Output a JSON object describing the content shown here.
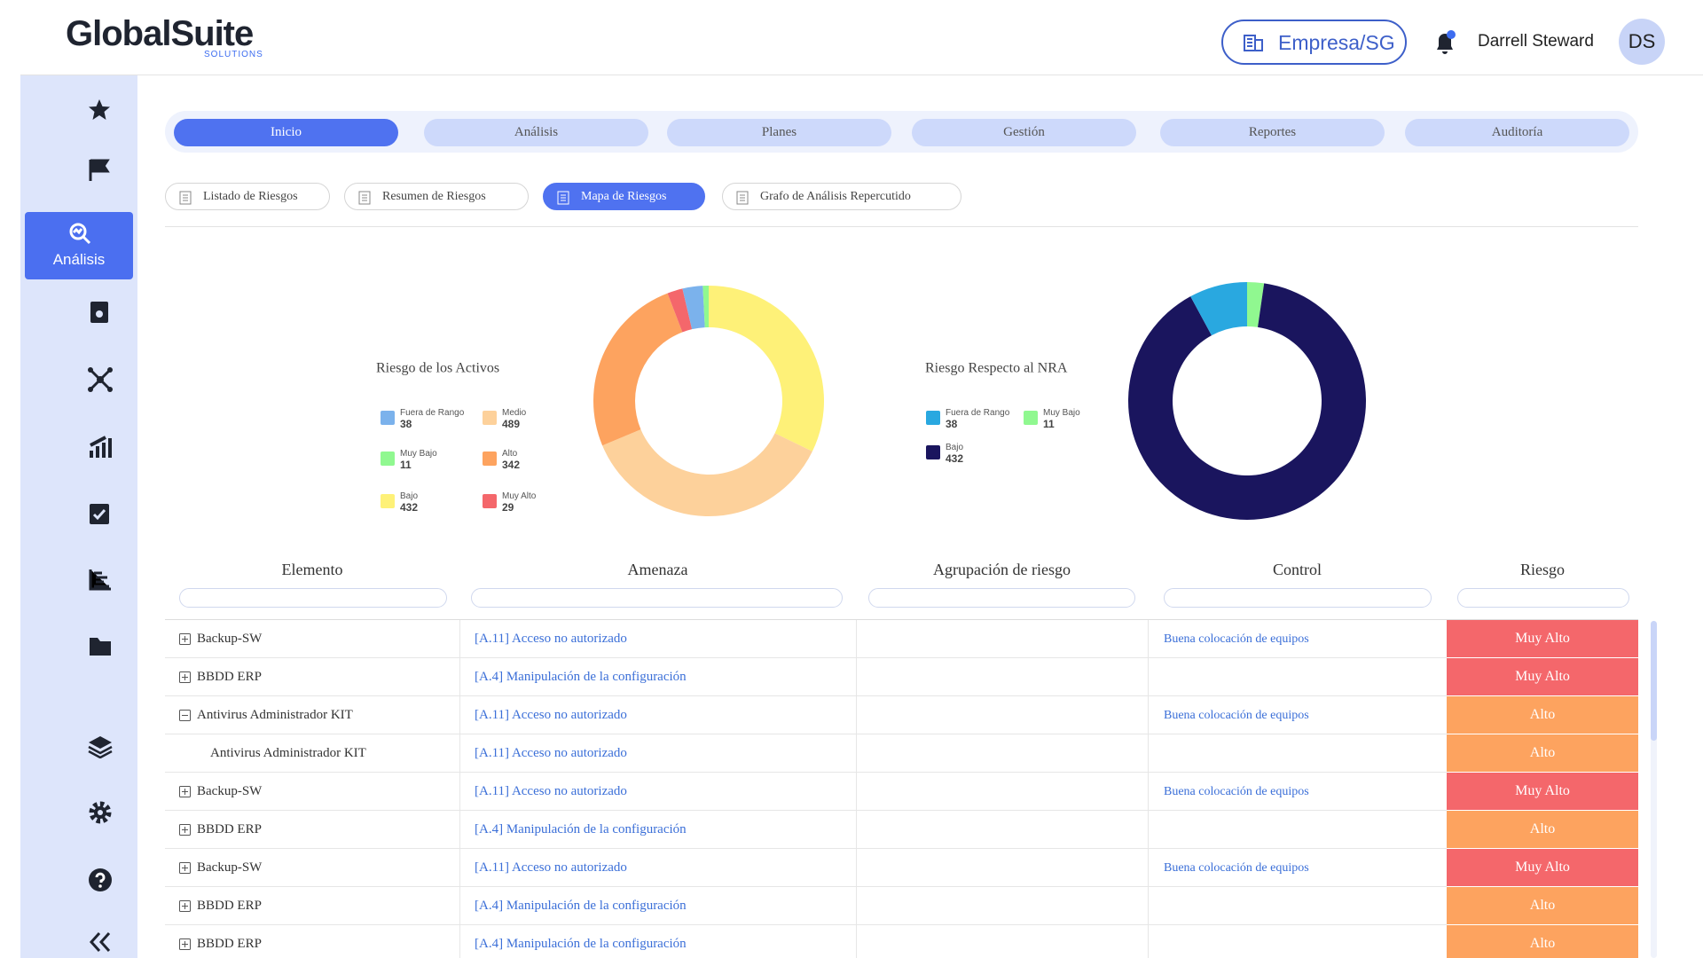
{
  "header": {
    "logo": "GlobalSuite",
    "logo_sub": "SOLUTIONS",
    "company": "Empresa/SG",
    "user": "Darrell Steward",
    "initials": "DS"
  },
  "sidebar": {
    "active": "Análisis"
  },
  "nav": [
    "Inicio",
    "Análisis",
    "Planes",
    "Gestión",
    "Reportes",
    "Auditoría"
  ],
  "subtabs": [
    "Listado de Riesgos",
    "Resumen de Riesgos",
    "Mapa de Riesgos",
    "Grafo de Análisis Repercutido"
  ],
  "chart_data": [
    {
      "type": "pie",
      "title": "Riesgo de los Activos",
      "categories": [
        "Bajo",
        "Medio",
        "Alto",
        "Muy Alto",
        "Fuera de Rango",
        "Muy Bajo"
      ],
      "values": [
        432,
        489,
        342,
        29,
        38,
        11
      ],
      "colors": [
        "#fef178",
        "#fdd19b",
        "#fda35f",
        "#f4676b",
        "#7bb2ec",
        "#90f890"
      ]
    },
    {
      "type": "pie",
      "title": "Riesgo Respecto al NRA",
      "categories": [
        "Muy Bajo",
        "Bajo",
        "Fuera de Rango"
      ],
      "values": [
        11,
        432,
        38
      ],
      "colors": [
        "#90f890",
        "#1a155e",
        "#29a8e0"
      ]
    }
  ],
  "table": {
    "columns": [
      "Elemento",
      "Amenaza",
      "Agrupación de riesgo",
      "Control",
      "Riesgo"
    ],
    "rows": [
      {
        "elemento": "Backup-SW",
        "amenaza": "[A.11] Acceso no autorizado",
        "control": "Buena colocación de equipos",
        "riesgo": "Muy Alto",
        "color": "#f4676b",
        "expanded": false
      },
      {
        "elemento": "BBDD ERP",
        "amenaza": "[A.4] Manipulación de la configuración",
        "riesgo": "Muy Alto",
        "color": "#f4676b",
        "expanded": false
      },
      {
        "elemento": "Antivirus Administrador KIT",
        "amenaza": "[A.11] Acceso no autorizado",
        "control": "Buena colocación de equipos",
        "riesgo": "Alto",
        "color": "#fda35f",
        "expanded": true
      },
      {
        "elemento": "Antivirus Administrador KIT",
        "amenaza": "[A.11] Acceso no autorizado",
        "riesgo": "Alto",
        "color": "#fda35f",
        "child": true
      },
      {
        "elemento": "Backup-SW",
        "amenaza": "[A.11] Acceso no autorizado",
        "control": "Buena colocación de equipos",
        "riesgo": "Muy Alto",
        "color": "#f4676b",
        "expanded": false
      },
      {
        "elemento": "BBDD ERP",
        "amenaza": "[A.4] Manipulación de la configuración",
        "riesgo": "Alto",
        "color": "#fda35f",
        "expanded": false
      },
      {
        "elemento": "Backup-SW",
        "amenaza": "[A.11] Acceso no autorizado",
        "control": "Buena colocación de equipos",
        "riesgo": "Muy Alto",
        "color": "#f4676b",
        "expanded": false
      },
      {
        "elemento": "BBDD ERP",
        "amenaza": "[A.4] Manipulación de la configuración",
        "riesgo": "Alto",
        "color": "#fda35f",
        "expanded": false
      },
      {
        "elemento": "BBDD ERP",
        "amenaza": "[A.4] Manipulación de la configuración",
        "riesgo": "Alto",
        "color": "#fda35f",
        "expanded": false
      }
    ]
  }
}
